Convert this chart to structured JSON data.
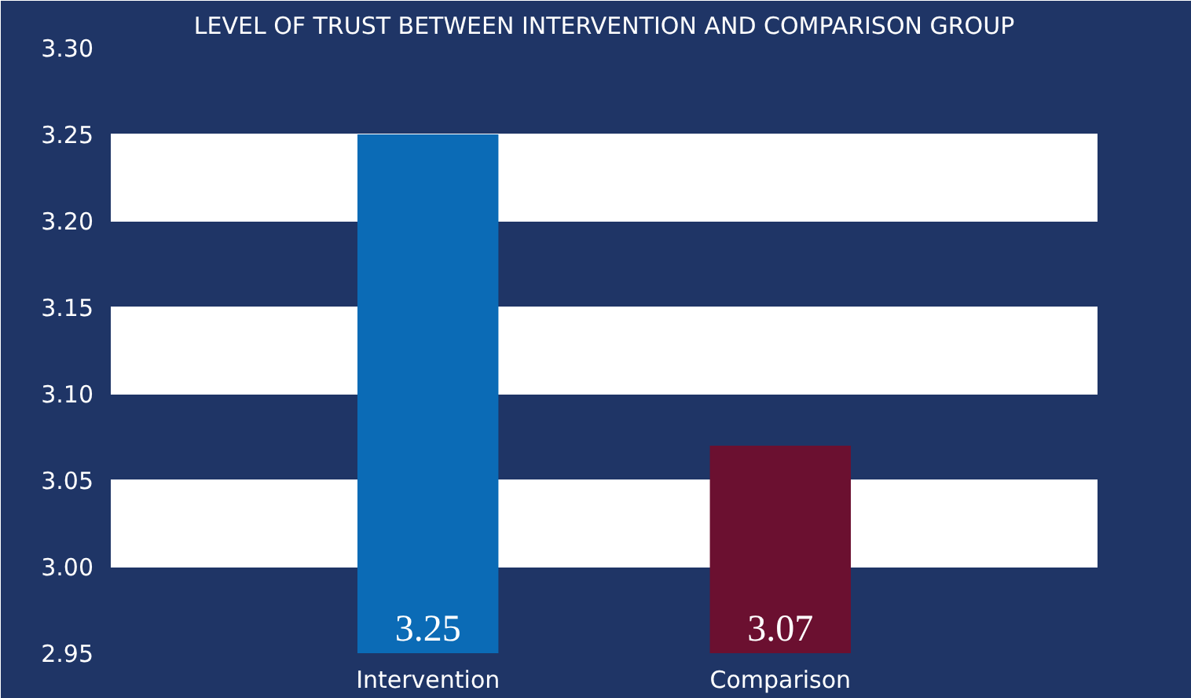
{
  "chart_data": {
    "type": "bar",
    "title": "LEVEL OF TRUST BETWEEN INTERVENTION AND COMPARISON GROUP",
    "categories": [
      "Intervention",
      "Comparison"
    ],
    "values": [
      3.25,
      3.07
    ],
    "colors": [
      "#0b6bb6",
      "#6b1030"
    ],
    "ylim": [
      2.95,
      3.3
    ],
    "yticks": [
      {
        "value": 2.95,
        "label": "2.95"
      },
      {
        "value": 3.0,
        "label": "3.00"
      },
      {
        "value": 3.05,
        "label": "3.05"
      },
      {
        "value": 3.1,
        "label": "3.10"
      },
      {
        "value": 3.15,
        "label": "3.15"
      },
      {
        "value": 3.2,
        "label": "3.20"
      },
      {
        "value": 3.25,
        "label": "3.25"
      },
      {
        "value": 3.3,
        "label": "3.30"
      }
    ],
    "grid": "y",
    "data_labels": true
  }
}
